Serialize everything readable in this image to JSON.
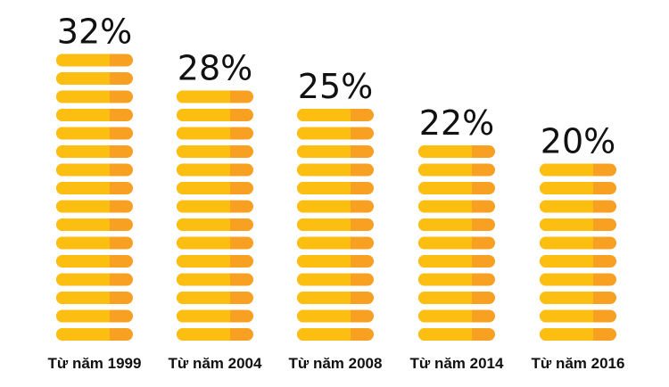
{
  "chart_data": {
    "type": "bar",
    "categories": [
      "Từ năm 1999",
      "Từ năm 2004",
      "Từ năm 2008",
      "Từ năm 2014",
      "Từ năm 2016"
    ],
    "values": [
      32,
      28,
      25,
      22,
      20
    ],
    "value_labels": [
      "32%",
      "28%",
      "25%",
      "22%",
      "20%"
    ],
    "unit": "%",
    "title": "",
    "xlabel": "",
    "ylabel": "",
    "grid": false,
    "legend": "none",
    "colors": {
      "coin_main": "#FDBE12",
      "coin_side": "#F7A022",
      "coin_gap": "#FFFFFF",
      "text": "#111111"
    }
  }
}
